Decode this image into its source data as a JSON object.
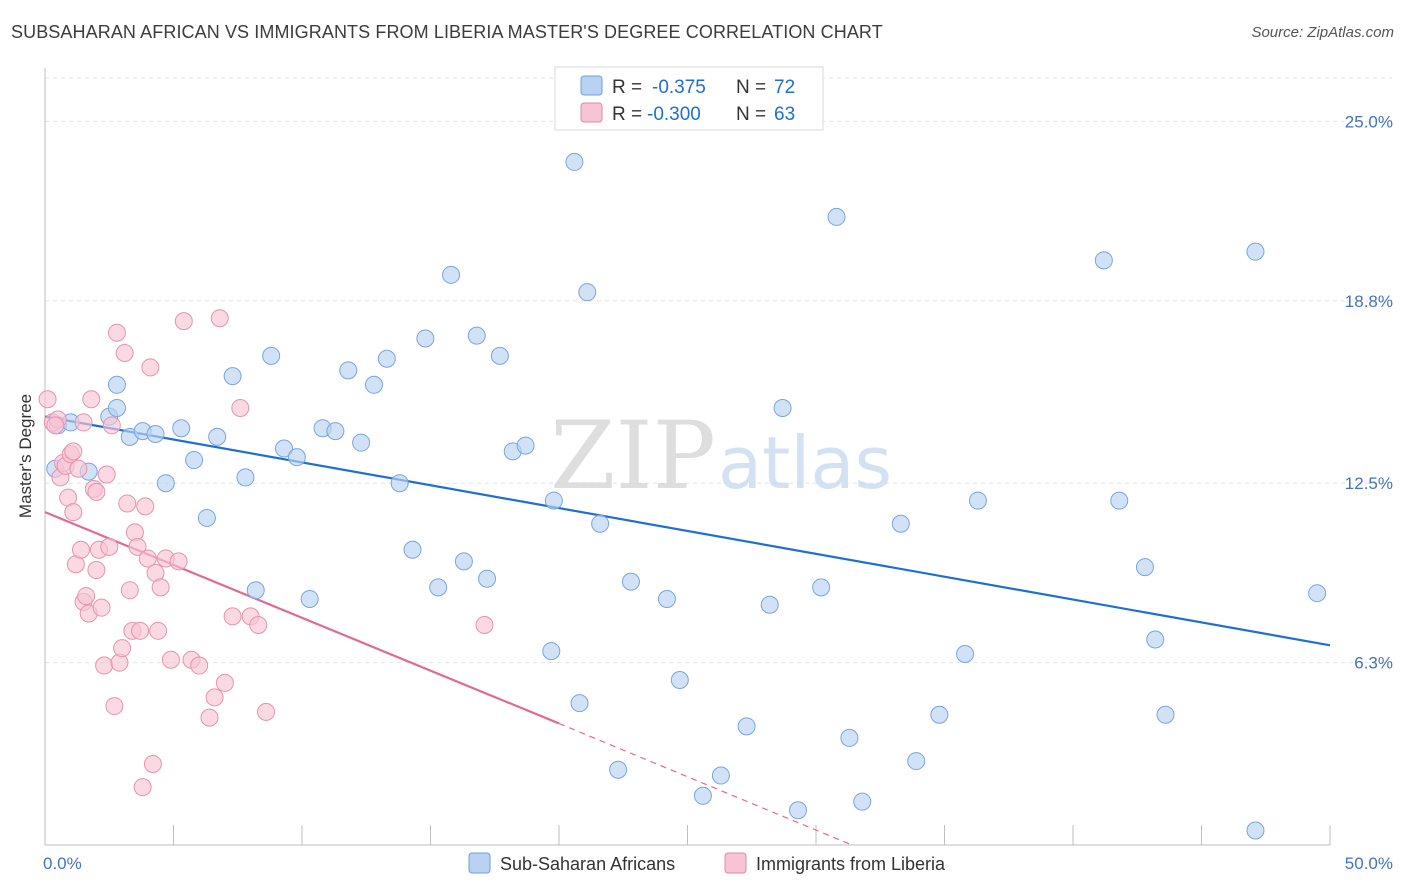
{
  "title": "SUBSAHARAN AFRICAN VS IMMIGRANTS FROM LIBERIA MASTER'S DEGREE CORRELATION CHART",
  "source": "Source: ZipAtlas.com",
  "watermark": {
    "zip": "ZIP",
    "atlas": "atlas"
  },
  "colors": {
    "blue": "#1f6fd1",
    "pink": "#e06a96",
    "blue_fill": "#b9d2f2",
    "pink_fill": "#f7c4d4",
    "axis_text": "#4472c4"
  },
  "stats_legend": [
    {
      "r_label": "R =",
      "r_value": "-0.375",
      "n_label": "N =",
      "n_value": "72"
    },
    {
      "r_label": "R =",
      "r_value": "-0.300",
      "n_label": "N =",
      "n_value": "63"
    }
  ],
  "chart_data": {
    "type": "scatter",
    "ylabel": "Master's Degree",
    "xlim": [
      0,
      50
    ],
    "ylim": [
      0,
      26.5
    ],
    "x_tick_labels": [
      "0.0%",
      "50.0%"
    ],
    "y_ticks": [
      6.3,
      12.5,
      18.8,
      25.0
    ],
    "y_tick_labels": [
      "6.3%",
      "12.5%",
      "18.8%",
      "25.0%"
    ],
    "grid": true,
    "legend_position": "bottom",
    "series": [
      {
        "name": "Sub-Saharan Africans",
        "trend": {
          "x": [
            0,
            50
          ],
          "y": [
            14.8,
            6.9
          ]
        },
        "points": [
          [
            0.5,
            14.5
          ],
          [
            1.0,
            14.6
          ],
          [
            0.4,
            13.0
          ],
          [
            2.5,
            14.8
          ],
          [
            2.8,
            15.1
          ],
          [
            2.8,
            15.9
          ],
          [
            3.3,
            14.1
          ],
          [
            3.8,
            14.3
          ],
          [
            4.3,
            14.2
          ],
          [
            5.3,
            14.4
          ],
          [
            4.7,
            12.5
          ],
          [
            5.8,
            13.3
          ],
          [
            6.3,
            11.3
          ],
          [
            6.7,
            14.1
          ],
          [
            7.3,
            16.2
          ],
          [
            7.8,
            12.7
          ],
          [
            8.2,
            8.8
          ],
          [
            8.8,
            16.9
          ],
          [
            9.3,
            13.7
          ],
          [
            9.8,
            13.4
          ],
          [
            10.3,
            8.5
          ],
          [
            10.8,
            14.4
          ],
          [
            11.3,
            14.3
          ],
          [
            11.8,
            16.4
          ],
          [
            12.3,
            13.9
          ],
          [
            12.8,
            15.9
          ],
          [
            13.3,
            16.8
          ],
          [
            13.8,
            12.5
          ],
          [
            14.3,
            10.2
          ],
          [
            14.8,
            17.5
          ],
          [
            15.3,
            8.9
          ],
          [
            15.8,
            19.7
          ],
          [
            16.3,
            9.8
          ],
          [
            16.8,
            17.6
          ],
          [
            17.2,
            9.2
          ],
          [
            17.7,
            16.9
          ],
          [
            18.2,
            13.6
          ],
          [
            18.7,
            13.8
          ],
          [
            19.7,
            6.7
          ],
          [
            19.8,
            11.9
          ],
          [
            20.6,
            23.6
          ],
          [
            20.8,
            4.9
          ],
          [
            21.1,
            19.1
          ],
          [
            21.6,
            11.1
          ],
          [
            22.3,
            2.6
          ],
          [
            22.8,
            9.1
          ],
          [
            24.2,
            8.5
          ],
          [
            24.7,
            5.7
          ],
          [
            25.6,
            1.7
          ],
          [
            26.3,
            2.4
          ],
          [
            27.3,
            4.1
          ],
          [
            28.2,
            8.3
          ],
          [
            28.7,
            15.1
          ],
          [
            29.3,
            1.2
          ],
          [
            30.2,
            8.9
          ],
          [
            30.8,
            21.7
          ],
          [
            31.3,
            3.7
          ],
          [
            31.8,
            1.5
          ],
          [
            33.3,
            11.1
          ],
          [
            33.9,
            2.9
          ],
          [
            34.8,
            4.5
          ],
          [
            35.8,
            6.6
          ],
          [
            36.3,
            11.9
          ],
          [
            41.2,
            20.2
          ],
          [
            41.8,
            11.9
          ],
          [
            42.8,
            9.6
          ],
          [
            43.2,
            7.1
          ],
          [
            43.6,
            4.5
          ],
          [
            47.1,
            20.5
          ],
          [
            47.1,
            0.5
          ],
          [
            49.5,
            8.7
          ],
          [
            1.7,
            12.9
          ]
        ]
      },
      {
        "name": "Immigrants from Liberia",
        "trend": {
          "x": [
            0,
            20
          ],
          "y": [
            11.5,
            4.2
          ]
        },
        "trend_dashed": {
          "x": [
            20,
            31.4
          ],
          "y": [
            4.2,
            0
          ]
        },
        "points": [
          [
            0.1,
            15.4
          ],
          [
            0.3,
            14.6
          ],
          [
            0.5,
            14.7
          ],
          [
            0.6,
            12.7
          ],
          [
            0.7,
            13.2
          ],
          [
            0.8,
            13.1
          ],
          [
            0.9,
            12.0
          ],
          [
            1.0,
            13.5
          ],
          [
            1.1,
            11.5
          ],
          [
            1.2,
            9.7
          ],
          [
            1.3,
            13.0
          ],
          [
            1.4,
            10.2
          ],
          [
            1.5,
            8.4
          ],
          [
            1.6,
            8.6
          ],
          [
            1.7,
            8.0
          ],
          [
            1.8,
            15.4
          ],
          [
            1.9,
            12.3
          ],
          [
            2.0,
            12.2
          ],
          [
            2.1,
            10.2
          ],
          [
            2.2,
            8.2
          ],
          [
            2.3,
            6.2
          ],
          [
            2.4,
            12.8
          ],
          [
            2.5,
            10.3
          ],
          [
            2.6,
            14.5
          ],
          [
            2.7,
            4.8
          ],
          [
            2.8,
            17.7
          ],
          [
            2.9,
            6.3
          ],
          [
            3.0,
            6.8
          ],
          [
            3.1,
            17.0
          ],
          [
            3.2,
            11.8
          ],
          [
            3.3,
            8.8
          ],
          [
            3.4,
            7.4
          ],
          [
            3.5,
            10.8
          ],
          [
            3.6,
            10.3
          ],
          [
            3.7,
            7.4
          ],
          [
            3.8,
            2.0
          ],
          [
            3.9,
            11.7
          ],
          [
            4.0,
            9.9
          ],
          [
            4.1,
            16.5
          ],
          [
            4.2,
            2.8
          ],
          [
            4.3,
            9.4
          ],
          [
            4.4,
            7.4
          ],
          [
            4.5,
            8.9
          ],
          [
            4.7,
            9.9
          ],
          [
            4.9,
            6.4
          ],
          [
            5.2,
            9.8
          ],
          [
            5.4,
            18.1
          ],
          [
            5.7,
            6.4
          ],
          [
            6.0,
            6.2
          ],
          [
            6.4,
            4.4
          ],
          [
            6.6,
            5.1
          ],
          [
            6.8,
            18.2
          ],
          [
            7.0,
            5.6
          ],
          [
            7.3,
            7.9
          ],
          [
            7.6,
            15.1
          ],
          [
            8.0,
            7.9
          ],
          [
            8.3,
            7.6
          ],
          [
            8.6,
            4.6
          ],
          [
            1.5,
            14.6
          ],
          [
            2.0,
            9.5
          ],
          [
            0.4,
            14.5
          ],
          [
            1.1,
            13.6
          ],
          [
            17.1,
            7.6
          ]
        ]
      }
    ]
  },
  "bottom_legend": [
    "Sub-Saharan Africans",
    "Immigrants from Liberia"
  ]
}
